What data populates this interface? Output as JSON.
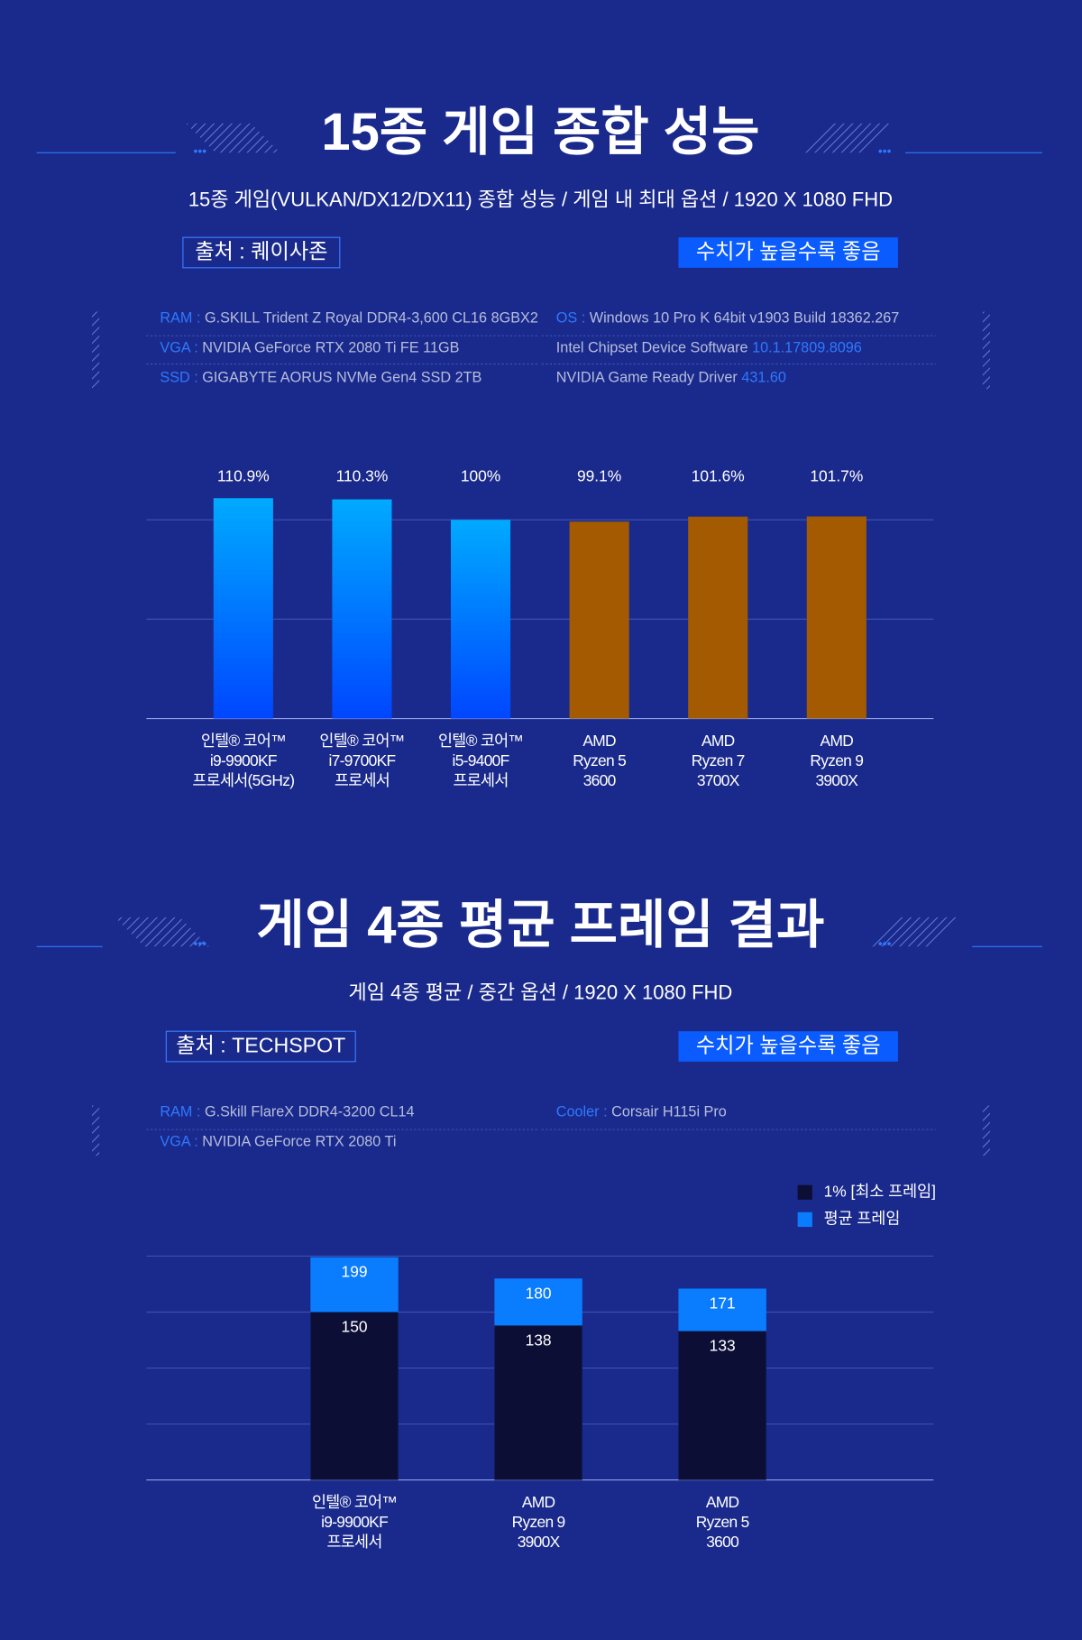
{
  "chart_data": [
    {
      "type": "bar",
      "title": "15종 게임 종합 성능",
      "subtitle": "15종 게임(VULKAN/DX12/DX11) 종합 성능 / 게임 내 최대 옵션 / 1920 X 1080 FHD",
      "source": "출처 : 퀘이사존",
      "note": "수치가 높을수록 좋음",
      "specs": [
        {
          "label": "RAM :",
          "text": "G.SKILL Trident Z Royal DDR4-3,600 CL16 8GBX2"
        },
        {
          "label": "OS :",
          "text": "Windows 10 Pro K 64bit v1903 Build 18362.267"
        },
        {
          "label": "VGA :",
          "text": "NVIDIA GeForce RTX 2080 Ti FE 11GB"
        },
        {
          "text": "Intel Chipset Device Software",
          "highlight": "10.1.17809.8096"
        },
        {
          "label": "SSD :",
          "text": "GIGABYTE AORUS NVMe Gen4 SSD 2TB"
        },
        {
          "text": "NVIDIA Game Ready Driver",
          "highlight": "431.60"
        }
      ],
      "categories": [
        [
          "인텔® 코어™",
          "i9-9900KF",
          "프로세서(5GHz)"
        ],
        [
          "인텔® 코어™",
          "i7-9700KF",
          "프로세서"
        ],
        [
          "인텔® 코어™",
          "i5-9400F",
          "프로세서"
        ],
        [
          "AMD",
          "Ryzen 5",
          "3600"
        ],
        [
          "AMD",
          "Ryzen 7",
          "3700X"
        ],
        [
          "AMD",
          "Ryzen 9",
          "3900X"
        ]
      ],
      "values": [
        110.9,
        110.3,
        100,
        99.1,
        101.6,
        101.7
      ],
      "value_labels": [
        "110.9%",
        "110.3%",
        "100%",
        "99.1%",
        "101.6%",
        "101.7%"
      ],
      "colors": [
        [
          "#00aaff",
          "#0046ff"
        ],
        [
          "#00aaff",
          "#0046ff"
        ],
        [
          "#00aaff",
          "#0046ff"
        ],
        [
          "#a35a00",
          "#a35a00"
        ],
        [
          "#a35a00",
          "#a35a00"
        ],
        [
          "#a35a00",
          "#a35a00"
        ]
      ],
      "ylim": [
        0,
        115
      ],
      "yticks": [
        0,
        50,
        100
      ],
      "grid": true
    },
    {
      "type": "overlap_bar",
      "title": "게임 4종 평균 프레임 결과",
      "subtitle": "게임 4종 평균 / 중간 옵션 / 1920 X 1080 FHD",
      "source": "출처 : TECHSPOT",
      "note": "수치가 높을수록 좋음",
      "specs": [
        {
          "label": "RAM :",
          "text": "G.Skill FlareX DDR4-3200 CL14"
        },
        {
          "label": "Cooler :",
          "text": "Corsair H115i Pro"
        },
        {
          "label": "VGA :",
          "text": "NVIDIA GeForce RTX 2080 Ti"
        }
      ],
      "categories": [
        [
          "인텔® 코어™",
          "i9-9900KF",
          "프로세서"
        ],
        [
          "AMD",
          "Ryzen 9",
          "3900X"
        ],
        [
          "AMD",
          "Ryzen 5",
          "3600"
        ]
      ],
      "series": [
        {
          "name": "1% [최소 프레임]",
          "color": "#0d0e35",
          "values": [
            150,
            138,
            133
          ]
        },
        {
          "name": "평균 프레임",
          "color": "#0a7dff",
          "values": [
            199,
            180,
            171
          ]
        }
      ],
      "ylim": [
        0,
        200
      ],
      "yticks": [
        0,
        50,
        100,
        150,
        200
      ],
      "grid": true,
      "legend": "top-right"
    }
  ]
}
